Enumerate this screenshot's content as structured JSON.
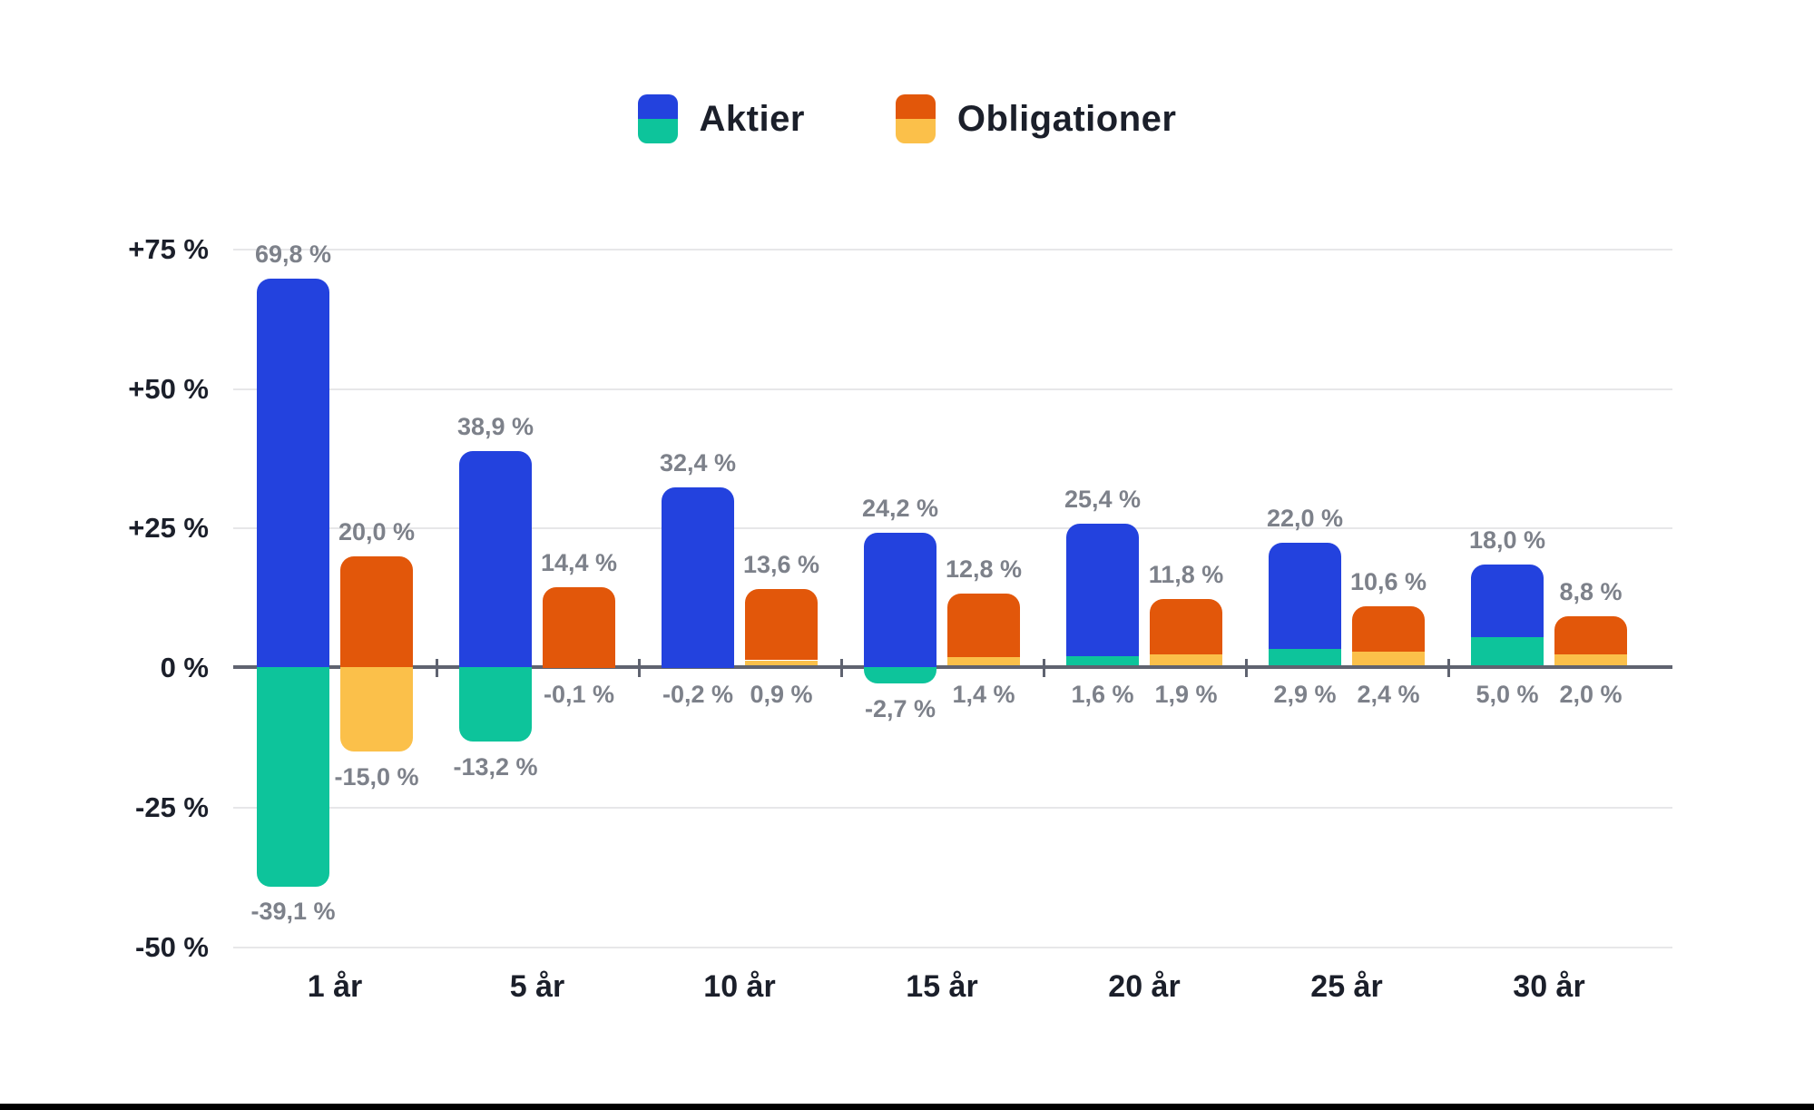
{
  "legend": {
    "items": [
      {
        "label": "Aktier",
        "color_max": "#2342DE",
        "color_min": "#0DC49B"
      },
      {
        "label": "Obligationer",
        "color_max": "#E2570A",
        "color_min": "#FBC04A"
      }
    ]
  },
  "y_axis": {
    "labels": [
      "+75 %",
      "+50 %",
      "+25 %",
      "0 %",
      "-25 %",
      "-50 %"
    ],
    "values": [
      75,
      50,
      25,
      0,
      -25,
      -50
    ]
  },
  "chart_data": {
    "type": "bar",
    "title": "",
    "categories": [
      "1 år",
      "5 år",
      "10 år",
      "15 år",
      "20 år",
      "25 år",
      "30 år"
    ],
    "ylim": [
      -50,
      75
    ],
    "grid": true,
    "legend_position": "top",
    "series": [
      {
        "name": "Aktier",
        "color_max": "#2342DE",
        "color_min": "#0DC49B",
        "max_values": [
          69.8,
          38.9,
          32.4,
          24.2,
          25.4,
          22.0,
          18.0
        ],
        "min_values": [
          -39.1,
          -13.2,
          -0.2,
          -2.7,
          1.6,
          2.9,
          5.0
        ],
        "max_labels": [
          "69,8 %",
          "38,9 %",
          "32,4 %",
          "24,2 %",
          "25,4 %",
          "22,0 %",
          "18,0 %"
        ],
        "min_labels": [
          "-39,1 %",
          "-13,2 %",
          "-0,2 %",
          "-2,7 %",
          "1,6 %",
          "2,9 %",
          "5,0 %"
        ]
      },
      {
        "name": "Obligationer",
        "color_max": "#E2570A",
        "color_min": "#FBC04A",
        "max_values": [
          20.0,
          14.4,
          13.6,
          12.8,
          11.8,
          10.6,
          8.8
        ],
        "min_values": [
          -15.0,
          -0.1,
          0.9,
          1.4,
          1.9,
          2.4,
          2.0
        ],
        "max_labels": [
          "20,0 %",
          "14,4 %",
          "13,6 %",
          "12,8 %",
          "11,8 %",
          "10,6 %",
          "8,8 %"
        ],
        "min_labels": [
          "-15,0 %",
          "-0,1 %",
          "0,9 %",
          "1,4 %",
          "1,9 %",
          "2,4 %",
          "2,0 %"
        ]
      }
    ]
  }
}
